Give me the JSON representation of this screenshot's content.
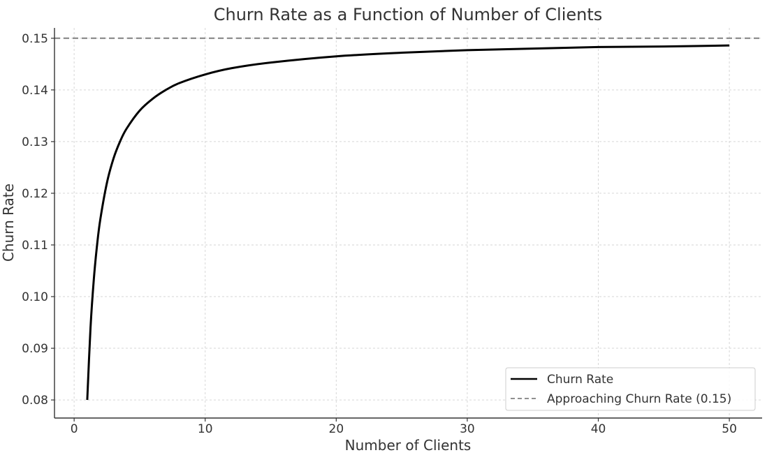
{
  "chart_data": {
    "type": "line",
    "title": "Churn Rate as a Function of Number of Clients",
    "xlabel": "Number of Clients",
    "ylabel": "Churn Rate",
    "xlim": [
      -1.5,
      52.5
    ],
    "ylim": [
      0.0765,
      0.152
    ],
    "xticks": [
      0,
      10,
      20,
      30,
      40,
      50
    ],
    "xtick_labels": [
      "0",
      "10",
      "20",
      "30",
      "40",
      "50"
    ],
    "yticks": [
      0.08,
      0.09,
      0.1,
      0.11,
      0.12,
      0.13,
      0.14,
      0.15
    ],
    "ytick_labels": [
      "0.08",
      "0.09",
      "0.10",
      "0.11",
      "0.12",
      "0.13",
      "0.14",
      "0.15"
    ],
    "grid": true,
    "legend_position": "bottom-right",
    "series": [
      {
        "name": "Churn Rate",
        "style": "solid",
        "color": "#000000",
        "x": [
          1,
          1.25,
          1.5,
          1.75,
          2,
          2.5,
          3,
          3.5,
          4,
          5,
          6,
          7,
          8,
          10,
          12,
          15,
          20,
          25,
          30,
          35,
          40,
          45,
          50
        ],
        "y": [
          0.08,
          0.094,
          0.1033,
          0.11,
          0.115,
          0.122,
          0.1267,
          0.13,
          0.1325,
          0.136,
          0.1383,
          0.14,
          0.1413,
          0.143,
          0.1442,
          0.1453,
          0.1465,
          0.1472,
          0.1477,
          0.148,
          0.1483,
          0.1484,
          0.1486
        ]
      },
      {
        "name": "Approaching Churn Rate (0.15)",
        "style": "dashed",
        "color": "#808080",
        "y_constant": 0.15
      }
    ]
  }
}
